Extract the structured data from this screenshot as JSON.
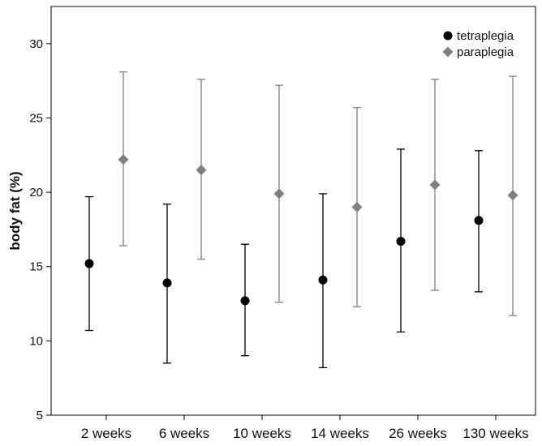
{
  "chart_data": {
    "type": "scatter",
    "title": "",
    "xlabel": "",
    "ylabel": "body fat (%)",
    "categories": [
      "2 weeks",
      "6 weeks",
      "10 weeks",
      "14 weeks",
      "26 weeks",
      "130 weeks"
    ],
    "ylim": [
      5,
      32.5
    ],
    "yticks": [
      "5",
      "10",
      "15",
      "20",
      "25",
      "30"
    ],
    "grid": false,
    "legend_position": "top-right",
    "series": [
      {
        "name": "tetraplegia",
        "marker": "circle",
        "color": "#000000",
        "error_bar_color": "#000000",
        "values": [
          15.2,
          13.9,
          12.7,
          14.1,
          16.7,
          18.1
        ],
        "lower": [
          10.7,
          8.5,
          9.0,
          8.2,
          10.6,
          13.3
        ],
        "upper": [
          19.7,
          19.2,
          16.5,
          19.9,
          22.9,
          22.8
        ]
      },
      {
        "name": "paraplegia",
        "marker": "diamond",
        "color": "#808080",
        "error_bar_color": "#808080",
        "values": [
          22.2,
          21.5,
          19.9,
          19.0,
          20.5,
          19.8
        ],
        "lower": [
          16.4,
          15.5,
          12.6,
          12.3,
          13.4,
          11.7
        ],
        "upper": [
          28.1,
          27.6,
          27.2,
          25.7,
          27.6,
          27.8
        ]
      }
    ]
  }
}
